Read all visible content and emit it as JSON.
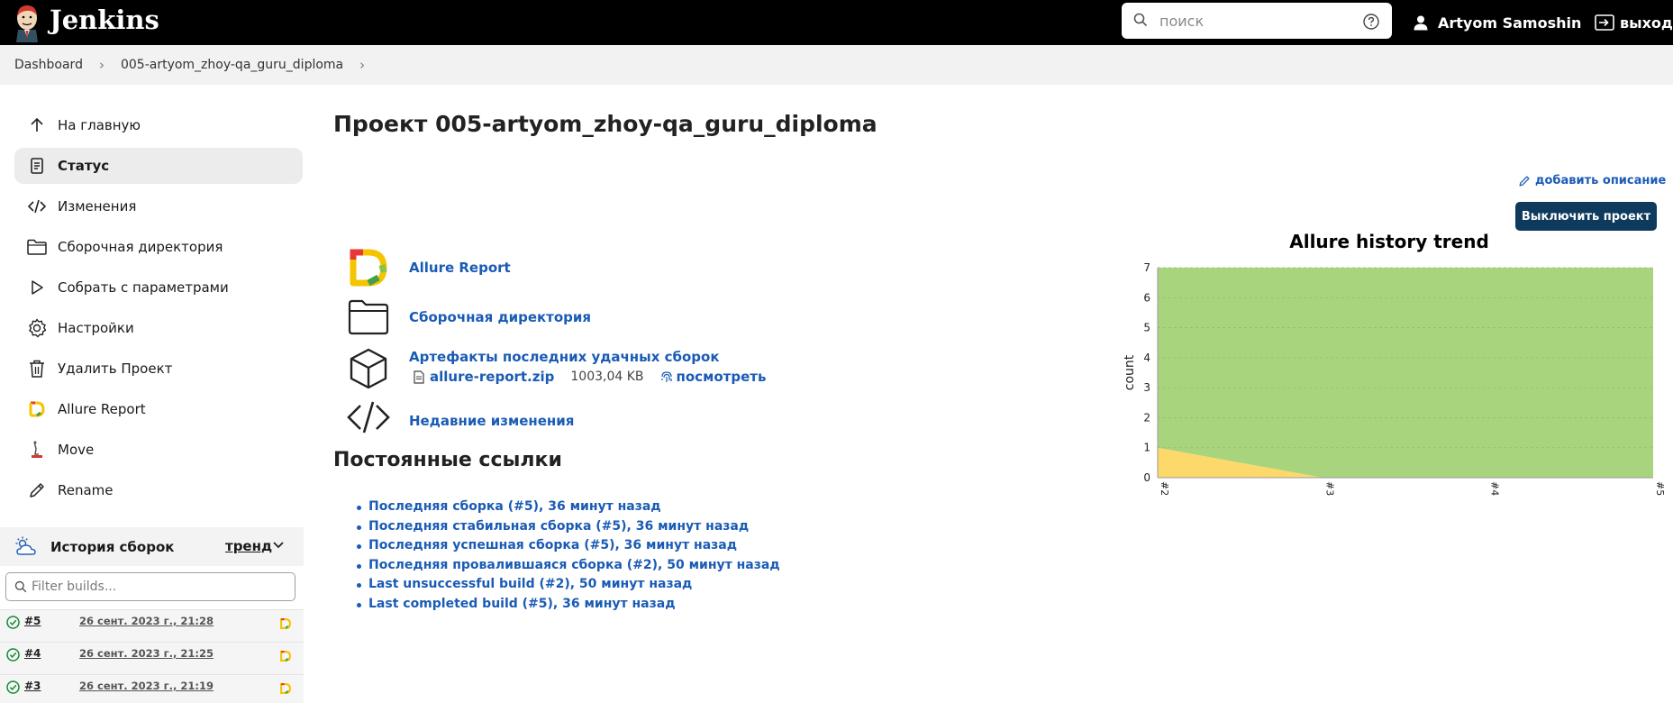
{
  "header": {
    "brand": "Jenkins",
    "search_placeholder": "поиск",
    "user_name": "Artyom Samoshin",
    "logout_label": "выход"
  },
  "breadcrumb": [
    "Dashboard",
    "005-artyom_zhoy-qa_guru_diploma"
  ],
  "sidebar": {
    "items": [
      {
        "label": "На главную",
        "icon": "arrow-up-icon"
      },
      {
        "label": "Статус",
        "icon": "document-icon",
        "active": true
      },
      {
        "label": "Изменения",
        "icon": "code-icon"
      },
      {
        "label": "Сборочная директория",
        "icon": "folder-icon"
      },
      {
        "label": "Собрать с параметрами",
        "icon": "play-icon"
      },
      {
        "label": "Настройки",
        "icon": "gear-icon"
      },
      {
        "label": "Удалить Проект",
        "icon": "trash-icon"
      },
      {
        "label": "Allure Report",
        "icon": "allure-icon"
      },
      {
        "label": "Move",
        "icon": "move-icon"
      },
      {
        "label": "Rename",
        "icon": "pencil-icon"
      }
    ]
  },
  "build_history": {
    "title": "История сборок",
    "trend_label": "тренд",
    "filter_placeholder": "Filter builds...",
    "builds": [
      {
        "number": "#5",
        "date": "26 сент. 2023 г., 21:28",
        "status": "success"
      },
      {
        "number": "#4",
        "date": "26 сент. 2023 г., 21:25",
        "status": "success"
      },
      {
        "number": "#3",
        "date": "26 сент. 2023 г., 21:19",
        "status": "success"
      }
    ]
  },
  "main": {
    "title": "Проект 005-artyom_zhoy-qa_guru_diploma",
    "add_description": "добавить описание",
    "disable_button": "Выключить проект",
    "links": {
      "allure_report": "Allure Report",
      "workspace": "Сборочная директория",
      "artifacts": "Артефакты последних удачных сборок",
      "recent_changes": "Недавние изменения"
    },
    "artifact": {
      "file": "allure-report.zip",
      "size": "1003,04 KB",
      "view": "посмотреть"
    },
    "permalinks_title": "Постоянные ссылки",
    "permalinks": [
      "Последняя сборка (#5), 36 минут назад",
      "Последняя стабильная сборка (#5), 36 минут назад",
      "Последняя успешная сборка (#5), 36 минут назад",
      "Последняя провалившаяся сборка (#2), 50 минут назад",
      "Last unsuccessful build (#2), 50 минут назад",
      "Last completed build (#5), 36 минут назад"
    ]
  },
  "colors": {
    "header_bg": "#000000",
    "link": "#1a5bb5",
    "button_bg": "#0e3a5e",
    "passed": "#a9d47e",
    "failed": "#fdd86a"
  },
  "chart_data": {
    "type": "area",
    "title": "Allure history trend",
    "ylabel": "count",
    "xlabel": "",
    "categories": [
      "#2",
      "#3",
      "#4",
      "#5"
    ],
    "ylim": [
      0,
      7
    ],
    "yticks": [
      0,
      1,
      2,
      3,
      4,
      5,
      6,
      7
    ],
    "grid": true,
    "stacked": true,
    "series": [
      {
        "color": "#fdd86a",
        "values": [
          1,
          0,
          0,
          0
        ]
      },
      {
        "color": "#a9d47e",
        "values": [
          6,
          7,
          7,
          7
        ]
      }
    ]
  }
}
